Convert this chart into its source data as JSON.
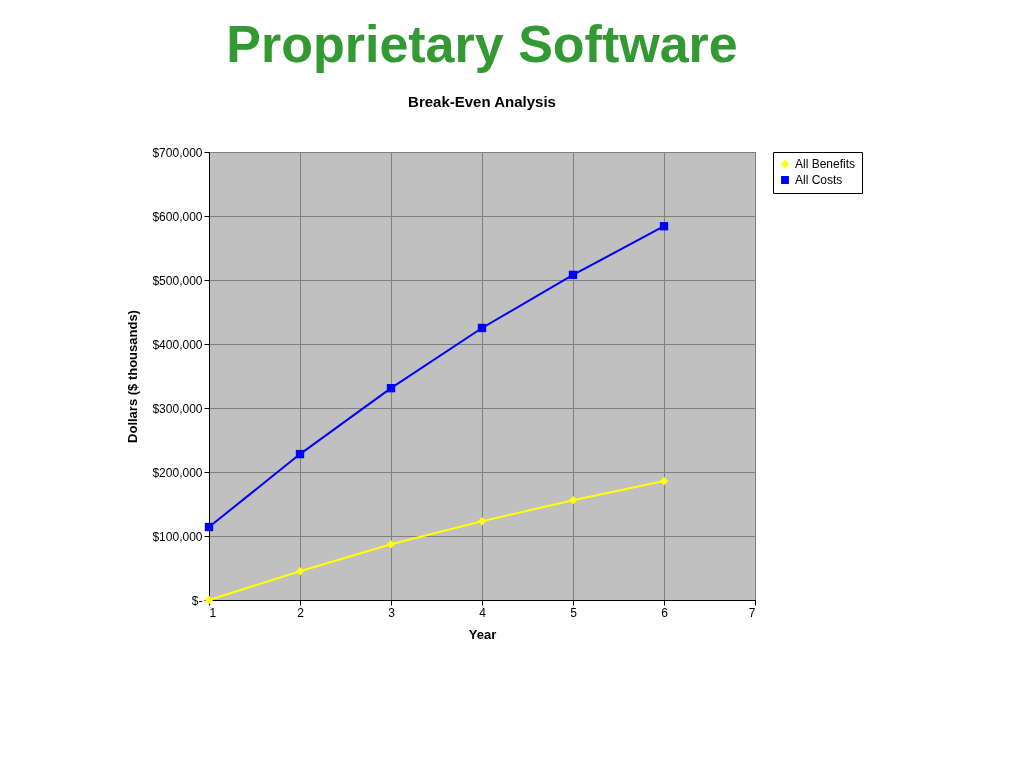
{
  "chart_data": {
    "type": "line",
    "title": "Proprietary Software",
    "subtitle": "Break-Even Analysis",
    "xlabel": "Year",
    "ylabel": "Dollars ($ thousands)",
    "x": [
      1,
      2,
      3,
      4,
      5,
      6
    ],
    "series": [
      {
        "name": "All Benefits",
        "color": "#ffff00",
        "marker": "diamond",
        "values": [
          0,
          45000,
          87000,
          123000,
          156000,
          186000
        ]
      },
      {
        "name": "All Costs",
        "color": "#0000ff",
        "marker": "square",
        "values": [
          114000,
          228000,
          331000,
          425000,
          508000,
          584000
        ]
      }
    ],
    "xlim": [
      1,
      7
    ],
    "xticks": [
      1,
      2,
      3,
      4,
      5,
      6,
      7
    ],
    "ylim": [
      0,
      700000
    ],
    "yticks": [
      {
        "value": 0,
        "label": "$-"
      },
      {
        "value": 100000,
        "label": "$100,000"
      },
      {
        "value": 200000,
        "label": "$200,000"
      },
      {
        "value": 300000,
        "label": "$300,000"
      },
      {
        "value": 400000,
        "label": "$400,000"
      },
      {
        "value": 500000,
        "label": "$500,000"
      },
      {
        "value": 600000,
        "label": "$600,000"
      },
      {
        "value": 700000,
        "label": "$700,000"
      }
    ],
    "grid": true,
    "legend": "right",
    "line_style": "solid"
  }
}
